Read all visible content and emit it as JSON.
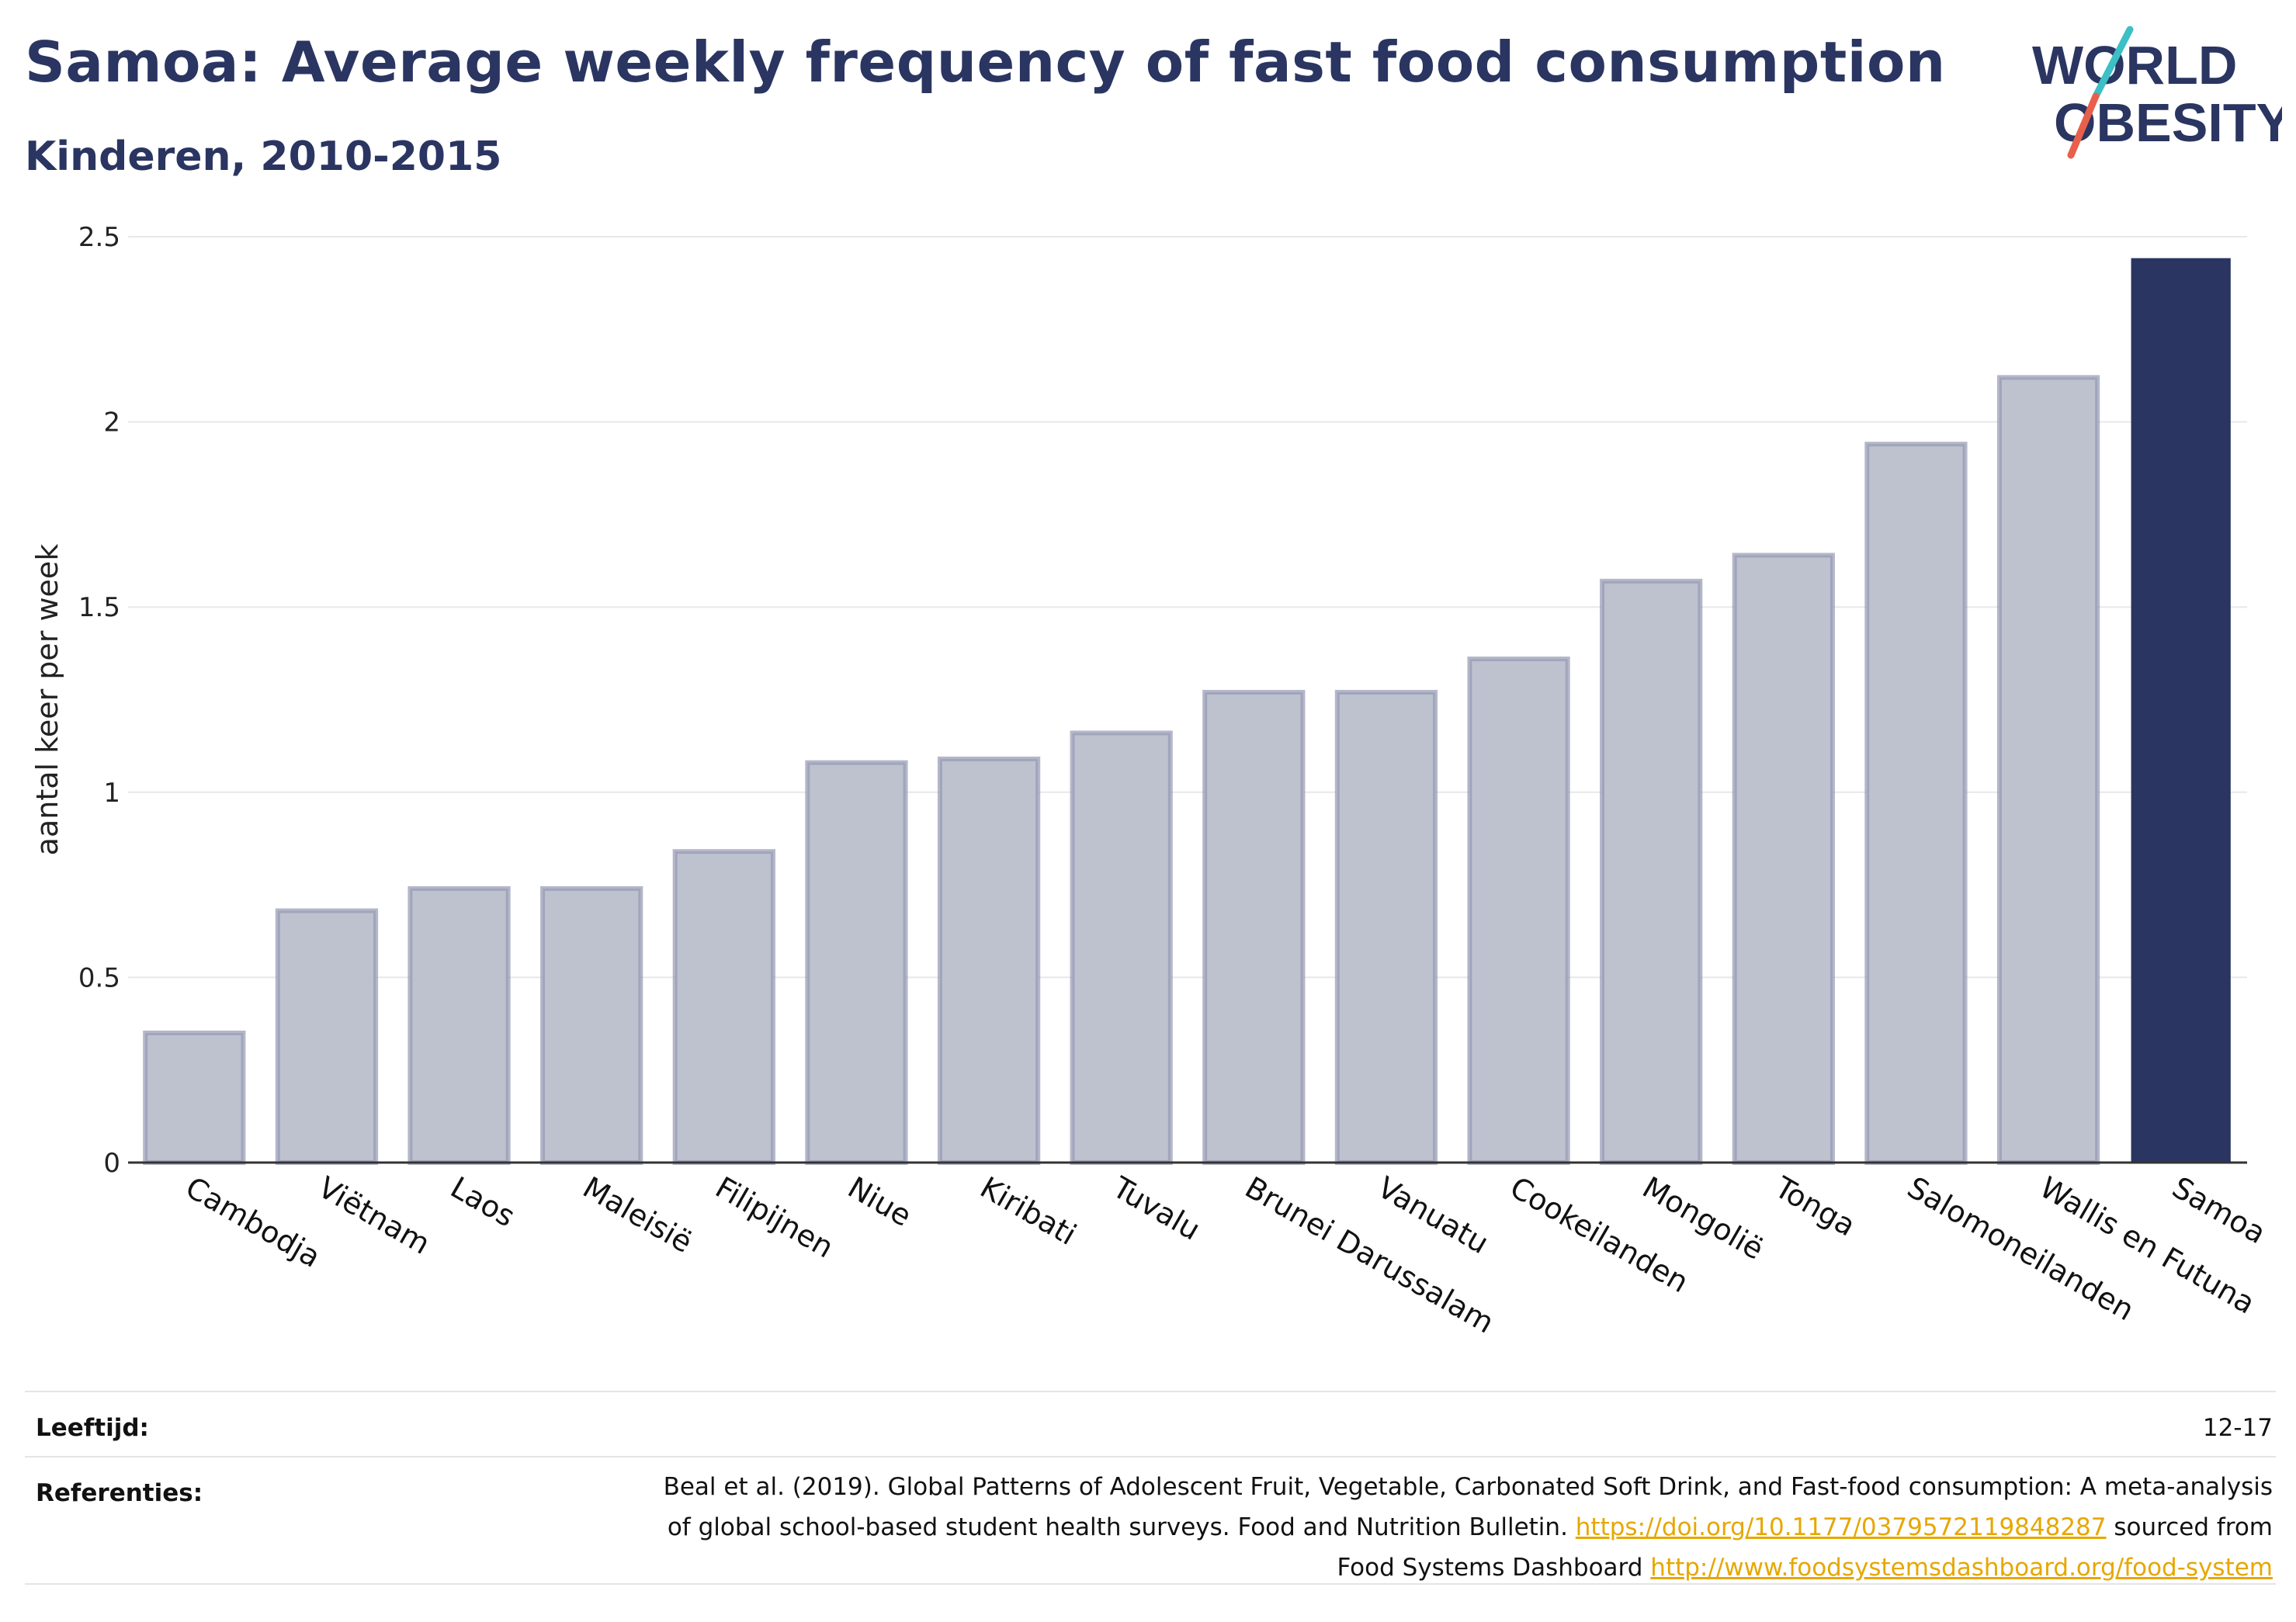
{
  "header": {
    "title": "Samoa: Average weekly frequency of fast food consumption",
    "subtitle": "Kinderen, 2010-2015"
  },
  "logo": {
    "line1": "WORLD",
    "line2": "OBESITY",
    "accent_teal": "#3cbfc5",
    "accent_red": "#e8604c",
    "text_color": "#2a3561"
  },
  "chart_data": {
    "type": "bar",
    "categories": [
      "Cambodja",
      "Viëtnam",
      "Laos",
      "Maleisië",
      "Filipijnen",
      "Niue",
      "Kiribati",
      "Tuvalu",
      "Brunei Darussalam",
      "Vanuatu",
      "Cookeilanden",
      "Mongolië",
      "Tonga",
      "Salomoneilanden",
      "Wallis en Futuna",
      "Samoa"
    ],
    "values": [
      0.35,
      0.68,
      0.74,
      0.74,
      0.84,
      1.08,
      1.09,
      1.16,
      1.27,
      1.27,
      1.36,
      1.57,
      1.64,
      1.94,
      2.12,
      2.44
    ],
    "highlight": "Samoa",
    "ylabel": "aantal keer per week",
    "xlabel": "",
    "ylim": [
      0,
      2.5
    ],
    "yticks": [
      0,
      0.5,
      1,
      1.5,
      2,
      2.5
    ],
    "ytick_labels": [
      "0",
      "0.5",
      "1",
      "1.5",
      "2",
      "2.5"
    ],
    "grid": true,
    "colors": {
      "bar": "#bec2cf",
      "bar_edge": "#9499b2",
      "highlight": "#2a3561",
      "grid": "#e8e8ec",
      "axis": "#333333"
    }
  },
  "meta": {
    "age_label": "Leeftijd:",
    "age_value": "12-17",
    "ref_label": "Referenties:",
    "ref_text_1": "Beal et al. (2019). Global Patterns of Adolescent Fruit, Vegetable, Carbonated Soft Drink, and Fast-food consumption: A meta-analysis of global school-based student health surveys. Food and Nutrition Bulletin.",
    "ref_link_1": "https://doi.org/10.1177/0379572119848287",
    "ref_text_2": "sourced from Food Systems Dashboard",
    "ref_link_2": "http://www.foodsystemsdashboard.org/food-system"
  }
}
